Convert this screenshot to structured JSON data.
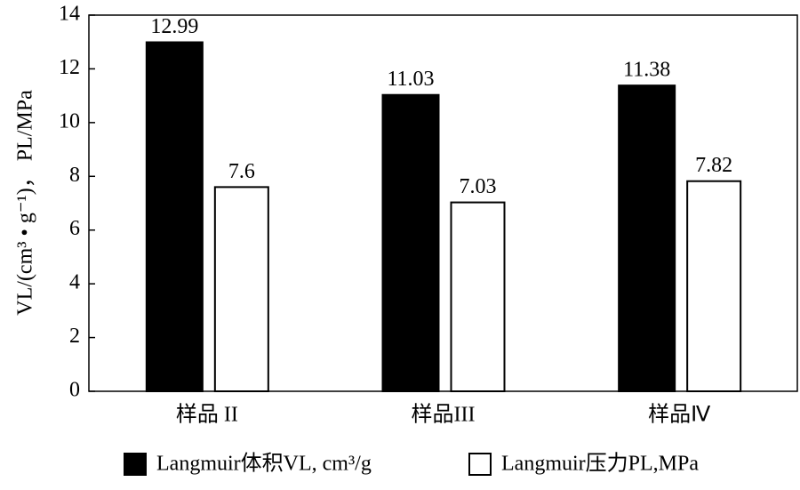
{
  "chart_data": {
    "type": "bar",
    "y_label": "VL/(cm³ • g⁻¹)，  PL/MPa",
    "categories": [
      "样品 II",
      "样品III",
      "样品Ⅳ"
    ],
    "series": [
      {
        "name": "Langmuir体积VL, cm³/g",
        "color": "#000000",
        "values": [
          12.99,
          11.03,
          11.38
        ]
      },
      {
        "name": "Langmuir压力PL,MPa",
        "color": "#ffffff",
        "values": [
          7.6,
          7.03,
          7.82
        ]
      }
    ],
    "ylim": [
      0,
      14
    ],
    "yticks": [
      0,
      2,
      4,
      6,
      8,
      10,
      12,
      14
    ]
  }
}
